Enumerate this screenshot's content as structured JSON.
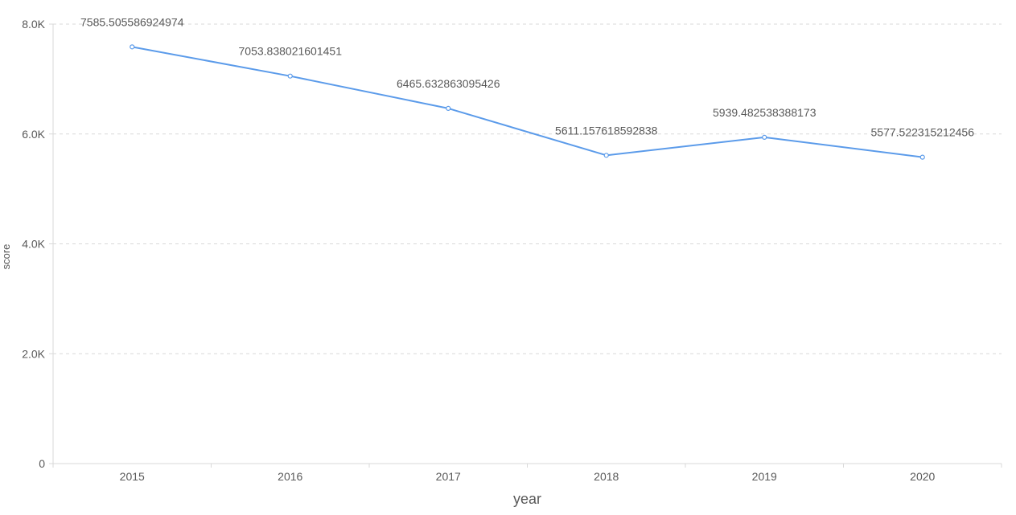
{
  "chart_data": {
    "type": "line",
    "x": [
      "2015",
      "2016",
      "2017",
      "2018",
      "2019",
      "2020"
    ],
    "series": [
      {
        "values": [
          7585.505586924974,
          7053.838021601451,
          6465.632863095426,
          5611.157618592838,
          5939.482538388173,
          5577.522315212456
        ]
      }
    ],
    "data_labels": [
      "7585.505586924974",
      "7053.838021601451",
      "6465.632863095426",
      "5611.157618592838",
      "5939.482538388173",
      "5577.522315212456"
    ],
    "xlabel": "year",
    "ylabel": "score",
    "ylim": [
      0,
      8000
    ],
    "y_ticks": [
      0,
      2000,
      4000,
      6000,
      8000
    ],
    "y_tick_labels": [
      "0",
      "2.0K",
      "4.0K",
      "6.0K",
      "8.0K"
    ],
    "grid": true,
    "line_color": "#5b9bea",
    "grid_color": "#d9d9d9",
    "axis_color": "#d9d9d9"
  }
}
